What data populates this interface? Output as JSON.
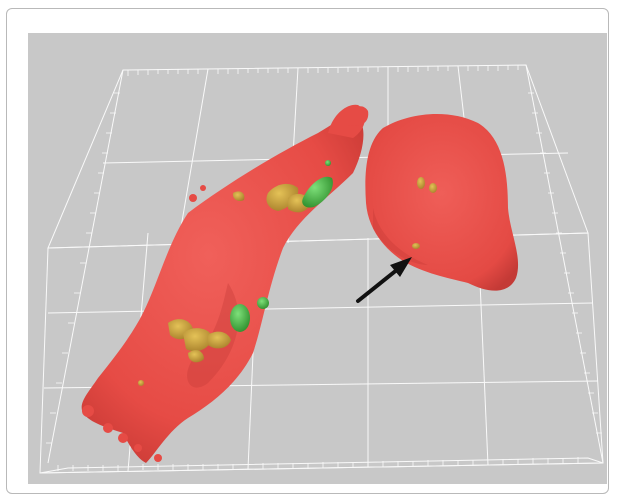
{
  "figure": {
    "colors": {
      "background": "#c8c8c8",
      "grid": "#ffffff",
      "cell": "#e8504a",
      "cell_shade": "#c43a36",
      "green_signal": "#3fae3c",
      "yellow_signal": "#c9a83a",
      "arrow": "#111111"
    },
    "annotations": [
      {
        "kind": "arrow",
        "icon": "arrow-icon"
      }
    ],
    "objects": [
      {
        "name": "elongated-cell"
      },
      {
        "name": "round-cell"
      },
      {
        "name": "bounding-box-grid"
      }
    ]
  }
}
